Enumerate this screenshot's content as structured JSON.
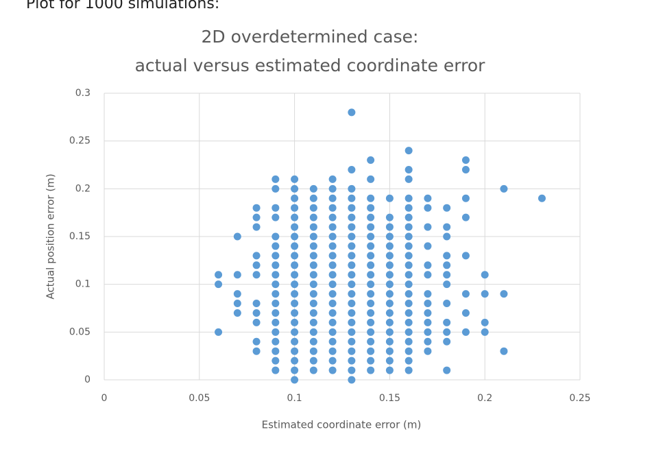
{
  "page": {
    "caption": "Plot for 1000 simulations:"
  },
  "chart_data": {
    "type": "scatter",
    "title": "2D overdetermined case:",
    "subtitle": "actual versus estimated coordinate error",
    "x_label": "Estimated coordinate error (m)",
    "y_label": "Actual position error (m)",
    "xlim": [
      0,
      0.25
    ],
    "ylim": [
      0,
      0.3
    ],
    "xticks": [
      0,
      0.05,
      0.1,
      0.15,
      0.2,
      0.25
    ],
    "yticks": [
      0,
      0.05,
      0.1,
      0.15,
      0.2,
      0.25,
      0.3
    ],
    "grid": true,
    "series": [
      {
        "color": "#5b9bd5",
        "x": [
          0.06,
          0.06,
          0.06,
          0.07,
          0.07,
          0.07,
          0.07,
          0.07,
          0.08,
          0.08,
          0.08,
          0.08,
          0.08,
          0.08,
          0.08,
          0.08,
          0.08,
          0.08,
          0.08,
          0.09,
          0.09,
          0.09,
          0.09,
          0.09,
          0.09,
          0.09,
          0.09,
          0.09,
          0.09,
          0.09,
          0.09,
          0.09,
          0.09,
          0.09,
          0.09,
          0.09,
          0.09,
          0.09,
          0.1,
          0.1,
          0.1,
          0.1,
          0.1,
          0.1,
          0.1,
          0.1,
          0.1,
          0.1,
          0.1,
          0.1,
          0.1,
          0.1,
          0.1,
          0.1,
          0.1,
          0.1,
          0.1,
          0.1,
          0.1,
          0.1,
          0.11,
          0.11,
          0.11,
          0.11,
          0.11,
          0.11,
          0.11,
          0.11,
          0.11,
          0.11,
          0.11,
          0.11,
          0.11,
          0.11,
          0.11,
          0.11,
          0.11,
          0.11,
          0.11,
          0.11,
          0.12,
          0.12,
          0.12,
          0.12,
          0.12,
          0.12,
          0.12,
          0.12,
          0.12,
          0.12,
          0.12,
          0.12,
          0.12,
          0.12,
          0.12,
          0.12,
          0.12,
          0.12,
          0.12,
          0.12,
          0.12,
          0.13,
          0.13,
          0.13,
          0.13,
          0.13,
          0.13,
          0.13,
          0.13,
          0.13,
          0.13,
          0.13,
          0.13,
          0.13,
          0.13,
          0.13,
          0.13,
          0.13,
          0.13,
          0.13,
          0.13,
          0.13,
          0.13,
          0.13,
          0.14,
          0.14,
          0.14,
          0.14,
          0.14,
          0.14,
          0.14,
          0.14,
          0.14,
          0.14,
          0.14,
          0.14,
          0.14,
          0.14,
          0.14,
          0.14,
          0.14,
          0.14,
          0.14,
          0.14,
          0.14,
          0.15,
          0.15,
          0.15,
          0.15,
          0.15,
          0.15,
          0.15,
          0.15,
          0.15,
          0.15,
          0.15,
          0.15,
          0.15,
          0.15,
          0.15,
          0.15,
          0.15,
          0.15,
          0.16,
          0.16,
          0.16,
          0.16,
          0.16,
          0.16,
          0.16,
          0.16,
          0.16,
          0.16,
          0.16,
          0.16,
          0.16,
          0.16,
          0.16,
          0.16,
          0.16,
          0.16,
          0.16,
          0.16,
          0.16,
          0.16,
          0.17,
          0.17,
          0.17,
          0.17,
          0.17,
          0.17,
          0.17,
          0.17,
          0.17,
          0.17,
          0.17,
          0.17,
          0.17,
          0.18,
          0.18,
          0.18,
          0.18,
          0.18,
          0.18,
          0.18,
          0.18,
          0.18,
          0.18,
          0.18,
          0.18,
          0.19,
          0.19,
          0.19,
          0.19,
          0.19,
          0.19,
          0.19,
          0.19,
          0.2,
          0.2,
          0.2,
          0.2,
          0.21,
          0.21,
          0.21,
          0.23
        ],
        "values": [
          0.11,
          0.1,
          0.05,
          0.15,
          0.11,
          0.09,
          0.08,
          0.07,
          0.18,
          0.17,
          0.16,
          0.13,
          0.12,
          0.11,
          0.08,
          0.07,
          0.06,
          0.04,
          0.03,
          0.21,
          0.2,
          0.18,
          0.17,
          0.15,
          0.14,
          0.13,
          0.12,
          0.11,
          0.1,
          0.09,
          0.08,
          0.07,
          0.06,
          0.05,
          0.04,
          0.03,
          0.02,
          0.01,
          0.21,
          0.2,
          0.19,
          0.18,
          0.17,
          0.16,
          0.15,
          0.14,
          0.13,
          0.12,
          0.11,
          0.1,
          0.09,
          0.08,
          0.07,
          0.06,
          0.05,
          0.04,
          0.03,
          0.02,
          0.01,
          0,
          0.2,
          0.19,
          0.18,
          0.17,
          0.16,
          0.15,
          0.14,
          0.13,
          0.12,
          0.11,
          0.1,
          0.09,
          0.08,
          0.07,
          0.06,
          0.05,
          0.04,
          0.03,
          0.02,
          0.01,
          0.21,
          0.2,
          0.19,
          0.18,
          0.17,
          0.16,
          0.15,
          0.14,
          0.13,
          0.12,
          0.11,
          0.1,
          0.09,
          0.08,
          0.07,
          0.06,
          0.05,
          0.04,
          0.03,
          0.02,
          0.01,
          0.28,
          0.22,
          0.2,
          0.19,
          0.18,
          0.17,
          0.16,
          0.15,
          0.14,
          0.13,
          0.12,
          0.11,
          0.1,
          0.09,
          0.08,
          0.07,
          0.06,
          0.05,
          0.04,
          0.03,
          0.02,
          0.01,
          0,
          0.23,
          0.21,
          0.19,
          0.18,
          0.17,
          0.16,
          0.15,
          0.14,
          0.13,
          0.12,
          0.11,
          0.1,
          0.09,
          0.08,
          0.07,
          0.06,
          0.05,
          0.04,
          0.03,
          0.02,
          0.01,
          0.19,
          0.17,
          0.16,
          0.15,
          0.14,
          0.13,
          0.12,
          0.11,
          0.1,
          0.09,
          0.08,
          0.07,
          0.06,
          0.05,
          0.04,
          0.03,
          0.02,
          0.01,
          0.24,
          0.22,
          0.21,
          0.19,
          0.18,
          0.17,
          0.16,
          0.15,
          0.14,
          0.13,
          0.12,
          0.11,
          0.1,
          0.09,
          0.08,
          0.07,
          0.06,
          0.05,
          0.04,
          0.03,
          0.02,
          0.01,
          0.19,
          0.18,
          0.16,
          0.14,
          0.12,
          0.11,
          0.09,
          0.08,
          0.07,
          0.06,
          0.05,
          0.04,
          0.03,
          0.18,
          0.16,
          0.15,
          0.13,
          0.12,
          0.11,
          0.1,
          0.08,
          0.06,
          0.05,
          0.04,
          0.01,
          0.23,
          0.22,
          0.19,
          0.17,
          0.13,
          0.09,
          0.07,
          0.05,
          0.11,
          0.09,
          0.06,
          0.05,
          0.2,
          0.09,
          0.03,
          0.19
        ]
      }
    ]
  }
}
